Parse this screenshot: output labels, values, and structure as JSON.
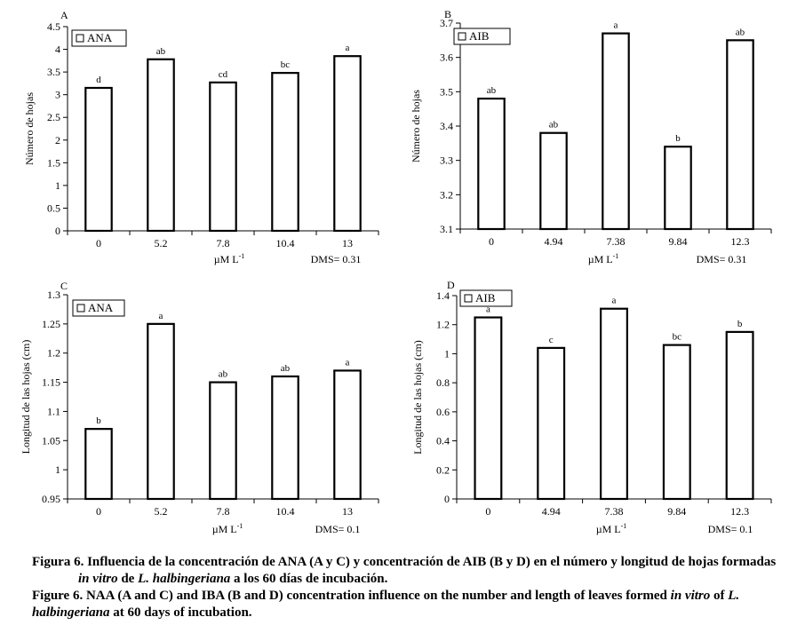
{
  "chart_data": [
    {
      "type": "bar",
      "panel_letter": "A",
      "legend": "ANA",
      "ylabel": "Número de hojas",
      "xlabel": "µM L-1",
      "dms_label": "DMS= 0.31",
      "categories": [
        "0",
        "5.2",
        "7.8",
        "10.4",
        "13"
      ],
      "values": [
        3.15,
        3.78,
        3.27,
        3.48,
        3.85
      ],
      "letters": [
        "d",
        "ab",
        "cd",
        "bc",
        "a"
      ],
      "ylim": [
        0,
        4.5
      ],
      "yticks": [
        "0",
        "0.5",
        "1",
        "1.5",
        "2",
        "2.5",
        "3",
        "3.5",
        "4",
        "4.5"
      ]
    },
    {
      "type": "bar",
      "panel_letter": "B",
      "legend": "AIB",
      "ylabel": "Número de hojas",
      "xlabel": "µM L-1",
      "dms_label": "DMS= 0.31",
      "categories": [
        "0",
        "4.94",
        "7.38",
        "9.84",
        "12.3"
      ],
      "values": [
        3.48,
        3.38,
        3.67,
        3.34,
        3.65
      ],
      "letters": [
        "ab",
        "ab",
        "a",
        "b",
        "ab"
      ],
      "ylim": [
        3.1,
        3.7
      ],
      "yticks": [
        "3.1",
        "3.2",
        "3.3",
        "3.4",
        "3.5",
        "3.6",
        "3.7"
      ]
    },
    {
      "type": "bar",
      "panel_letter": "C",
      "legend": "ANA",
      "ylabel": "Longitud de las hojas (cm)",
      "xlabel": "µM L-1",
      "dms_label": "DMS= 0.1",
      "categories": [
        "0",
        "5.2",
        "7.8",
        "10.4",
        "13"
      ],
      "values": [
        1.07,
        1.25,
        1.15,
        1.16,
        1.17
      ],
      "letters": [
        "b",
        "a",
        "ab",
        "ab",
        "a"
      ],
      "ylim": [
        0.95,
        1.3
      ],
      "yticks": [
        "0.95",
        "1",
        "1.05",
        "1.1",
        "1.15",
        "1.2",
        "1.25",
        "1.3"
      ]
    },
    {
      "type": "bar",
      "panel_letter": "D",
      "legend": "AIB",
      "ylabel": "Longitud de las hojas (cm)",
      "xlabel": "µM L-1",
      "dms_label": "DMS= 0.1",
      "categories": [
        "0",
        "4.94",
        "7.38",
        "9.84",
        "12.3"
      ],
      "values": [
        1.25,
        1.04,
        1.31,
        1.06,
        1.15
      ],
      "letters": [
        "a",
        "c",
        "a",
        "bc",
        "b"
      ],
      "ylim": [
        0,
        1.4
      ],
      "yticks": [
        "0",
        "0.2",
        "0.4",
        "0.6",
        "0.8",
        "1",
        "1.2",
        "1.4"
      ]
    }
  ],
  "captions": {
    "es": {
      "label": "Figura 6.",
      "text1": " Influencia de la concentración de ANA (A y C) y concentración de AIB (B y D) en el número y longitud de hojas formadas",
      "italic1": "in vitro",
      "text2": " de ",
      "italic2": "L. halbingeriana",
      "text3": " a los 60 días de incubación."
    },
    "en": {
      "label": "Figure 6.",
      "text1": " NAA (A and C) and IBA (B and D) concentration influence on the number and length of leaves formed ",
      "italic1": "in vitro",
      "text2": " of ",
      "italic2": "L. halbingeriana",
      "text3": " at 60 days of incubation."
    }
  }
}
